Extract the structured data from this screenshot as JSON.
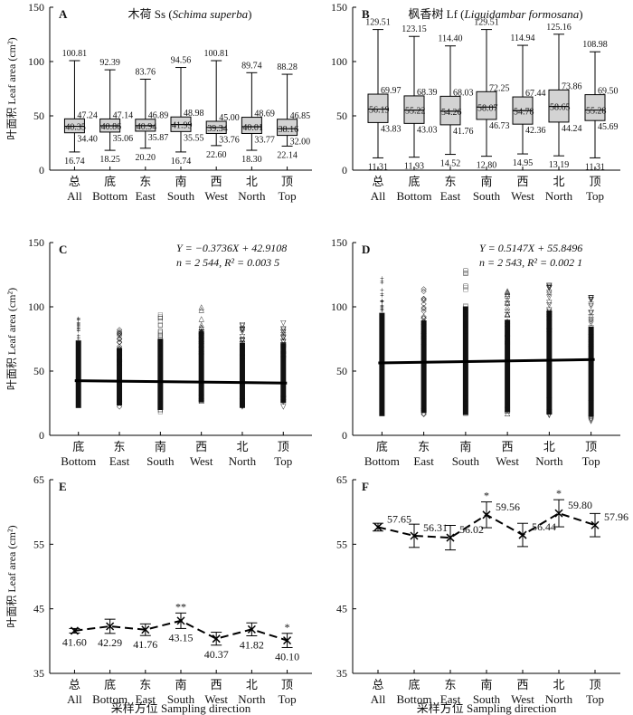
{
  "figure": {
    "y_axis_label": "叶面积 Leaf area (cm²)",
    "x_axis_label": "采样方位 Sampling direction"
  },
  "chart_data": [
    {
      "id": "A",
      "type": "box",
      "panel_label": "A",
      "title_cn": "木荷 Ss (",
      "title_species": "Schima superba",
      "title_close": ")",
      "ylabel": "叶面积 Leaf area (cm²)",
      "ylim": [
        0,
        150
      ],
      "yticks": [
        0,
        50,
        100,
        150
      ],
      "categories_cn": [
        "总",
        "底",
        "东",
        "南",
        "西",
        "北",
        "顶"
      ],
      "categories_en": [
        "All",
        "Bottom",
        "East",
        "South",
        "West",
        "North",
        "Top"
      ],
      "boxes": [
        {
          "min": 16.74,
          "q1": 34.4,
          "median": 40.35,
          "q3": 47.24,
          "max": 100.81
        },
        {
          "min": 18.25,
          "q1": 35.06,
          "median": 40.86,
          "q3": 47.14,
          "max": 92.39
        },
        {
          "min": 20.2,
          "q1": 35.87,
          "median": 40.94,
          "q3": 46.89,
          "max": 83.76
        },
        {
          "min": 16.74,
          "q1": 35.55,
          "median": 41.99,
          "q3": 48.98,
          "max": 94.56
        },
        {
          "min": 22.6,
          "q1": 33.76,
          "median": 39.34,
          "q3": 45.0,
          "max": 100.81
        },
        {
          "min": 18.3,
          "q1": 33.77,
          "median": 40.01,
          "q3": 48.69,
          "max": 89.74
        },
        {
          "min": 22.14,
          "q1": 32.0,
          "median": 38.16,
          "q3": 46.85,
          "max": 88.28
        }
      ],
      "box_labels": [
        {
          "min": "16.74",
          "q1": "34.40",
          "median": "40.35",
          "q3": "47.24",
          "max": "100.81"
        },
        {
          "min": "18.25",
          "q1": "35.06",
          "median": "40.86",
          "q3": "47.14",
          "max": "92.39"
        },
        {
          "min": "20.20",
          "q1": "35.87",
          "median": "40.94",
          "q3": "46.89",
          "max": "83.76"
        },
        {
          "min": "16.74",
          "q1": "35.55",
          "median": "41.99",
          "q3": "48.98",
          "max": "94.56"
        },
        {
          "min": "22.60",
          "q1": "33.76",
          "median": "39.34",
          "q3": "45.00",
          "max": "100.81"
        },
        {
          "min": "18.30",
          "q1": "33.77",
          "median": "40.01",
          "q3": "48.69",
          "max": "89.74"
        },
        {
          "min": "22.14",
          "q1": "32.00",
          "median": "38.16",
          "q3": "46.85",
          "max": "88.28"
        }
      ]
    },
    {
      "id": "B",
      "type": "box",
      "panel_label": "B",
      "title_cn": "枫香树 Lf (",
      "title_species": "Liquidambar formosana",
      "title_close": ")",
      "ylabel": "",
      "ylim": [
        0,
        150
      ],
      "yticks": [
        0,
        50,
        100,
        150
      ],
      "categories_cn": [
        "总",
        "底",
        "东",
        "南",
        "西",
        "北",
        "顶"
      ],
      "categories_en": [
        "All",
        "Bottom",
        "East",
        "South",
        "West",
        "North",
        "Top"
      ],
      "boxes": [
        {
          "min": 11.31,
          "q1": 43.83,
          "median": 56.19,
          "q3": 69.97,
          "max": 129.51
        },
        {
          "min": 11.93,
          "q1": 43.03,
          "median": 55.22,
          "q3": 68.39,
          "max": 123.15
        },
        {
          "min": 14.52,
          "q1": 41.76,
          "median": 54.26,
          "q3": 68.03,
          "max": 114.4
        },
        {
          "min": 12.8,
          "q1": 46.73,
          "median": 58.07,
          "q3": 72.25,
          "max": 129.51
        },
        {
          "min": 14.95,
          "q1": 42.36,
          "median": 54.78,
          "q3": 67.44,
          "max": 114.94
        },
        {
          "min": 13.19,
          "q1": 44.24,
          "median": 58.65,
          "q3": 73.86,
          "max": 125.16
        },
        {
          "min": 11.31,
          "q1": 45.69,
          "median": 55.28,
          "q3": 69.5,
          "max": 108.98
        }
      ],
      "box_labels": [
        {
          "min": "11.31",
          "q1": "43.83",
          "median": "56.19",
          "q3": "69.97",
          "max": "129.51"
        },
        {
          "min": "11.93",
          "q1": "43.03",
          "median": "55.22",
          "q3": "68.39",
          "max": "123.15"
        },
        {
          "min": "14.52",
          "q1": "41.76",
          "median": "54.26",
          "q3": "68.03",
          "max": "114.40"
        },
        {
          "min": "12.80",
          "q1": "46.73",
          "median": "58.07",
          "q3": "72.25",
          "max": "129.51"
        },
        {
          "min": "14.95",
          "q1": "42.36",
          "median": "54.78",
          "q3": "67.44",
          "max": "114.94"
        },
        {
          "min": "13.19",
          "q1": "44.24",
          "median": "58.65",
          "q3": "73.86",
          "max": "125.16"
        },
        {
          "min": "11.31",
          "q1": "45.69",
          "median": "55.28",
          "q3": "69.50",
          "max": "108.98"
        }
      ]
    },
    {
      "id": "C",
      "type": "scatter",
      "panel_label": "C",
      "equation_1": "Y = −0.3736X + 42.9108",
      "equation_2": "n = 2 544, R² = 0.003 5",
      "ylabel": "叶面积 Leaf area (cm²)",
      "ylim": [
        0,
        150
      ],
      "yticks": [
        0,
        50,
        100,
        150
      ],
      "categories_cn": [
        "底",
        "东",
        "南",
        "西",
        "北",
        "顶"
      ],
      "categories_en": [
        "Bottom",
        "East",
        "South",
        "West",
        "North",
        "Top"
      ],
      "markers": [
        "+",
        "◇",
        "□",
        "△",
        "▽",
        "▽"
      ],
      "ranges": [
        [
          18.25,
          92.39
        ],
        [
          20.2,
          83.76
        ],
        [
          16.74,
          94.56
        ],
        [
          22.6,
          100.81
        ],
        [
          18.3,
          89.74
        ],
        [
          22.14,
          88.28
        ]
      ],
      "trend": {
        "slope": -0.3736,
        "intercept": 42.9108
      }
    },
    {
      "id": "D",
      "type": "scatter",
      "panel_label": "D",
      "equation_1": "Y = 0.5147X + 55.8496",
      "equation_2": "n = 2 543, R² = 0.002 1",
      "ylabel": "",
      "ylim": [
        0,
        150
      ],
      "yticks": [
        0,
        50,
        100,
        150
      ],
      "categories_cn": [
        "底",
        "东",
        "南",
        "西",
        "北",
        "顶"
      ],
      "categories_en": [
        "Bottom",
        "East",
        "South",
        "West",
        "North",
        "Top"
      ],
      "markers": [
        "+",
        "◇",
        "□",
        "△",
        "▽",
        "▽"
      ],
      "ranges": [
        [
          11.93,
          123.15
        ],
        [
          14.52,
          114.4
        ],
        [
          12.8,
          129.51
        ],
        [
          14.95,
          114.94
        ],
        [
          13.19,
          125.16
        ],
        [
          11.31,
          108.98
        ]
      ],
      "trend": {
        "slope": 0.5147,
        "intercept": 55.8496
      }
    },
    {
      "id": "E",
      "type": "line",
      "panel_label": "E",
      "ylabel": "叶面积 Leaf area (cm²)",
      "xlabel": "采样方位 Sampling direction",
      "ylim": [
        35,
        65
      ],
      "yticks": [
        35,
        45,
        55,
        65
      ],
      "categories_cn": [
        "总",
        "底",
        "东",
        "南",
        "西",
        "北",
        "顶"
      ],
      "categories_en": [
        "All",
        "Bottom",
        "East",
        "South",
        "West",
        "North",
        "Top"
      ],
      "values": [
        41.6,
        42.29,
        41.76,
        43.15,
        40.37,
        41.82,
        40.1
      ],
      "errors": [
        0.35,
        1.1,
        0.9,
        1.2,
        1.0,
        1.0,
        1.1
      ],
      "value_labels": [
        "41.60",
        "42.29",
        "41.76",
        "43.15",
        "40.37",
        "41.82",
        "40.10"
      ],
      "significance": [
        "",
        "",
        "",
        "**",
        "",
        "",
        "*"
      ]
    },
    {
      "id": "F",
      "type": "line",
      "panel_label": "F",
      "ylabel": "",
      "xlabel": "采样方位 Sampling direction",
      "ylim": [
        35,
        65
      ],
      "yticks": [
        35,
        45,
        55,
        65
      ],
      "categories_cn": [
        "总",
        "底",
        "东",
        "南",
        "西",
        "北",
        "顶"
      ],
      "categories_en": [
        "All",
        "Bottom",
        "East",
        "South",
        "West",
        "North",
        "Top"
      ],
      "values": [
        57.65,
        56.31,
        56.02,
        59.56,
        56.44,
        59.8,
        57.96
      ],
      "errors": [
        0.6,
        1.8,
        1.9,
        2.0,
        1.8,
        2.1,
        1.8
      ],
      "value_labels": [
        "57.65",
        "56.31",
        "56.02",
        "59.56",
        "56.44",
        "59.80",
        "57.96"
      ],
      "significance": [
        "",
        "",
        "",
        "*",
        "",
        "*",
        ""
      ]
    }
  ]
}
